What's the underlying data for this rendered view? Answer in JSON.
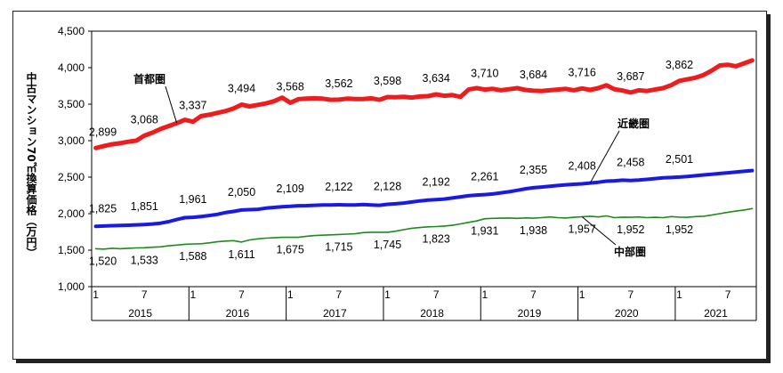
{
  "chart_data": {
    "type": "line",
    "ylabel": "中古マンション70㎡換算価格（万円）",
    "ylim": [
      1000,
      4500
    ],
    "yticks": [
      "1,000",
      "1,500",
      "2,000",
      "2,500",
      "3,000",
      "3,500",
      "4,000",
      "4,500"
    ],
    "x_month_ticks": [
      "1",
      "7",
      "1",
      "7",
      "1",
      "7",
      "1",
      "7",
      "1",
      "7",
      "1",
      "7",
      "1",
      "7"
    ],
    "years": [
      "2015",
      "2016",
      "2017",
      "2018",
      "2019",
      "2020",
      "2021"
    ],
    "series": [
      {
        "name": "首都圏",
        "color": "#ee1c1c",
        "values": [
          2899,
          2925,
          2950,
          2965,
          2985,
          3000,
          3068,
          3110,
          3160,
          3200,
          3240,
          3285,
          3260,
          3337,
          3355,
          3380,
          3405,
          3440,
          3494,
          3470,
          3490,
          3510,
          3540,
          3590,
          3520,
          3568,
          3575,
          3580,
          3575,
          3560,
          3562,
          3575,
          3570,
          3570,
          3580,
          3560,
          3598,
          3595,
          3600,
          3590,
          3605,
          3610,
          3634,
          3615,
          3625,
          3600,
          3700,
          3720,
          3700,
          3710,
          3690,
          3705,
          3720,
          3695,
          3684,
          3680,
          3690,
          3700,
          3710,
          3690,
          3716,
          3695,
          3720,
          3760,
          3705,
          3687,
          3660,
          3690,
          3680,
          3700,
          3720,
          3760,
          3820,
          3840,
          3862,
          3900,
          3960,
          4030,
          4040,
          4020,
          4060,
          4100
        ],
        "labels": [
          "2,899",
          "3,068",
          "3,337",
          "3,494",
          "3,568",
          "3,562",
          "3,598",
          "3,634",
          "3,710",
          "3,684",
          "3,716",
          "3,687",
          "3,862"
        ]
      },
      {
        "name": "近畿圏",
        "color": "#1a1ae6",
        "values": [
          1825,
          1830,
          1835,
          1838,
          1842,
          1846,
          1851,
          1858,
          1870,
          1890,
          1920,
          1945,
          1950,
          1961,
          1975,
          1990,
          2015,
          2030,
          2050,
          2055,
          2060,
          2075,
          2085,
          2095,
          2100,
          2109,
          2110,
          2115,
          2118,
          2120,
          2122,
          2120,
          2118,
          2125,
          2120,
          2115,
          2128,
          2135,
          2145,
          2160,
          2175,
          2185,
          2192,
          2200,
          2215,
          2230,
          2245,
          2255,
          2261,
          2270,
          2285,
          2300,
          2320,
          2340,
          2355,
          2365,
          2375,
          2385,
          2395,
          2402,
          2408,
          2420,
          2430,
          2445,
          2450,
          2458,
          2455,
          2460,
          2470,
          2480,
          2490,
          2495,
          2501,
          2510,
          2520,
          2530,
          2540,
          2550,
          2560,
          2570,
          2580,
          2590
        ],
        "labels": [
          "1,825",
          "1,851",
          "1,961",
          "2,050",
          "2,109",
          "2,122",
          "2,128",
          "2,192",
          "2,261",
          "2,355",
          "2,408",
          "2,458",
          "2,501"
        ]
      },
      {
        "name": "中部圏",
        "color": "#1e8a1e",
        "values": [
          1520,
          1515,
          1525,
          1520,
          1525,
          1530,
          1533,
          1540,
          1545,
          1560,
          1570,
          1580,
          1585,
          1588,
          1600,
          1615,
          1625,
          1630,
          1611,
          1640,
          1655,
          1665,
          1670,
          1675,
          1675,
          1675,
          1690,
          1700,
          1705,
          1710,
          1715,
          1720,
          1725,
          1740,
          1745,
          1745,
          1745,
          1760,
          1780,
          1800,
          1810,
          1820,
          1823,
          1830,
          1840,
          1860,
          1880,
          1900,
          1931,
          1935,
          1938,
          1940,
          1935,
          1942,
          1938,
          1945,
          1955,
          1945,
          1940,
          1950,
          1957,
          1965,
          1955,
          1970,
          1945,
          1952,
          1950,
          1955,
          1945,
          1950,
          1945,
          1960,
          1952,
          1950,
          1960,
          1965,
          1980,
          2000,
          2020,
          2035,
          2050,
          2070
        ],
        "labels": [
          "1,520",
          "1,533",
          "1,588",
          "1,611",
          "1,675",
          "1,715",
          "1,745",
          "1,823",
          "1,931",
          "1,938",
          "1,957",
          "1,952",
          "1,952"
        ]
      }
    ]
  }
}
